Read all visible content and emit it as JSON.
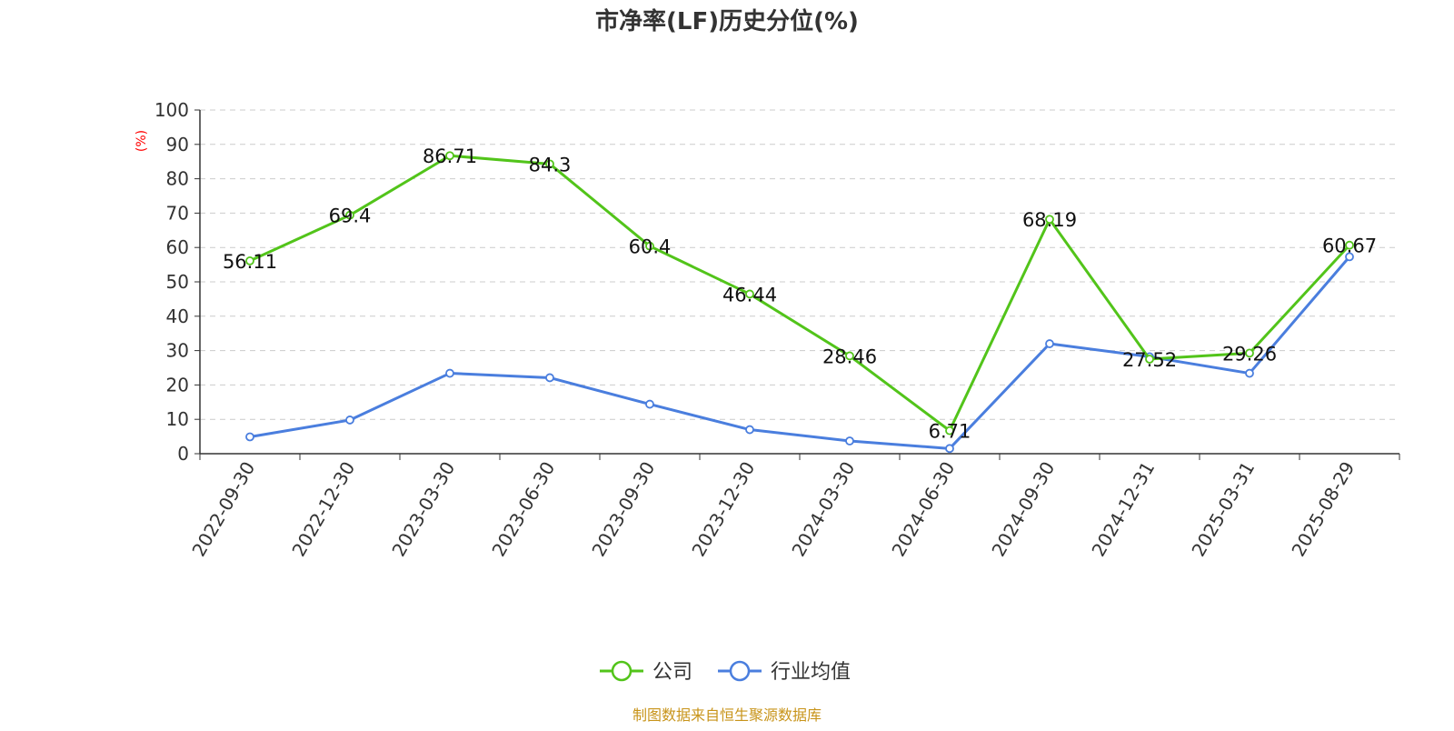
{
  "chart_data": {
    "type": "line",
    "title": "市净率(LF)历史分位(%)",
    "unit_label": "(%)",
    "categories": [
      "2022-09-30",
      "2022-12-30",
      "2023-03-30",
      "2023-06-30",
      "2023-09-30",
      "2023-12-30",
      "2024-03-30",
      "2024-06-30",
      "2024-09-30",
      "2024-12-31",
      "2025-03-31",
      "2025-08-29"
    ],
    "ylim": [
      0,
      100
    ],
    "yticks": [
      0,
      10,
      20,
      30,
      40,
      50,
      60,
      70,
      80,
      90,
      100
    ],
    "grid": true,
    "legend_position": "bottom",
    "series": [
      {
        "name": "公司",
        "color": "#52c41a",
        "values": [
          56.11,
          69.4,
          86.71,
          84.3,
          60.4,
          46.44,
          28.46,
          6.71,
          68.19,
          27.52,
          29.26,
          60.67
        ],
        "data_labels": [
          "56.11",
          "69.4",
          "86.71",
          "84.3",
          "60.4",
          "46.44",
          "28.46",
          "6.71",
          "68.19",
          "27.52",
          "29.26",
          "60.67"
        ]
      },
      {
        "name": "行业均值",
        "color": "#4a7ede",
        "values": [
          4.9,
          9.8,
          23.4,
          22.1,
          14.4,
          7.0,
          3.7,
          1.5,
          32.0,
          28.2,
          23.4,
          57.3
        ]
      }
    ],
    "source": "制图数据来自恒生聚源数据库"
  }
}
